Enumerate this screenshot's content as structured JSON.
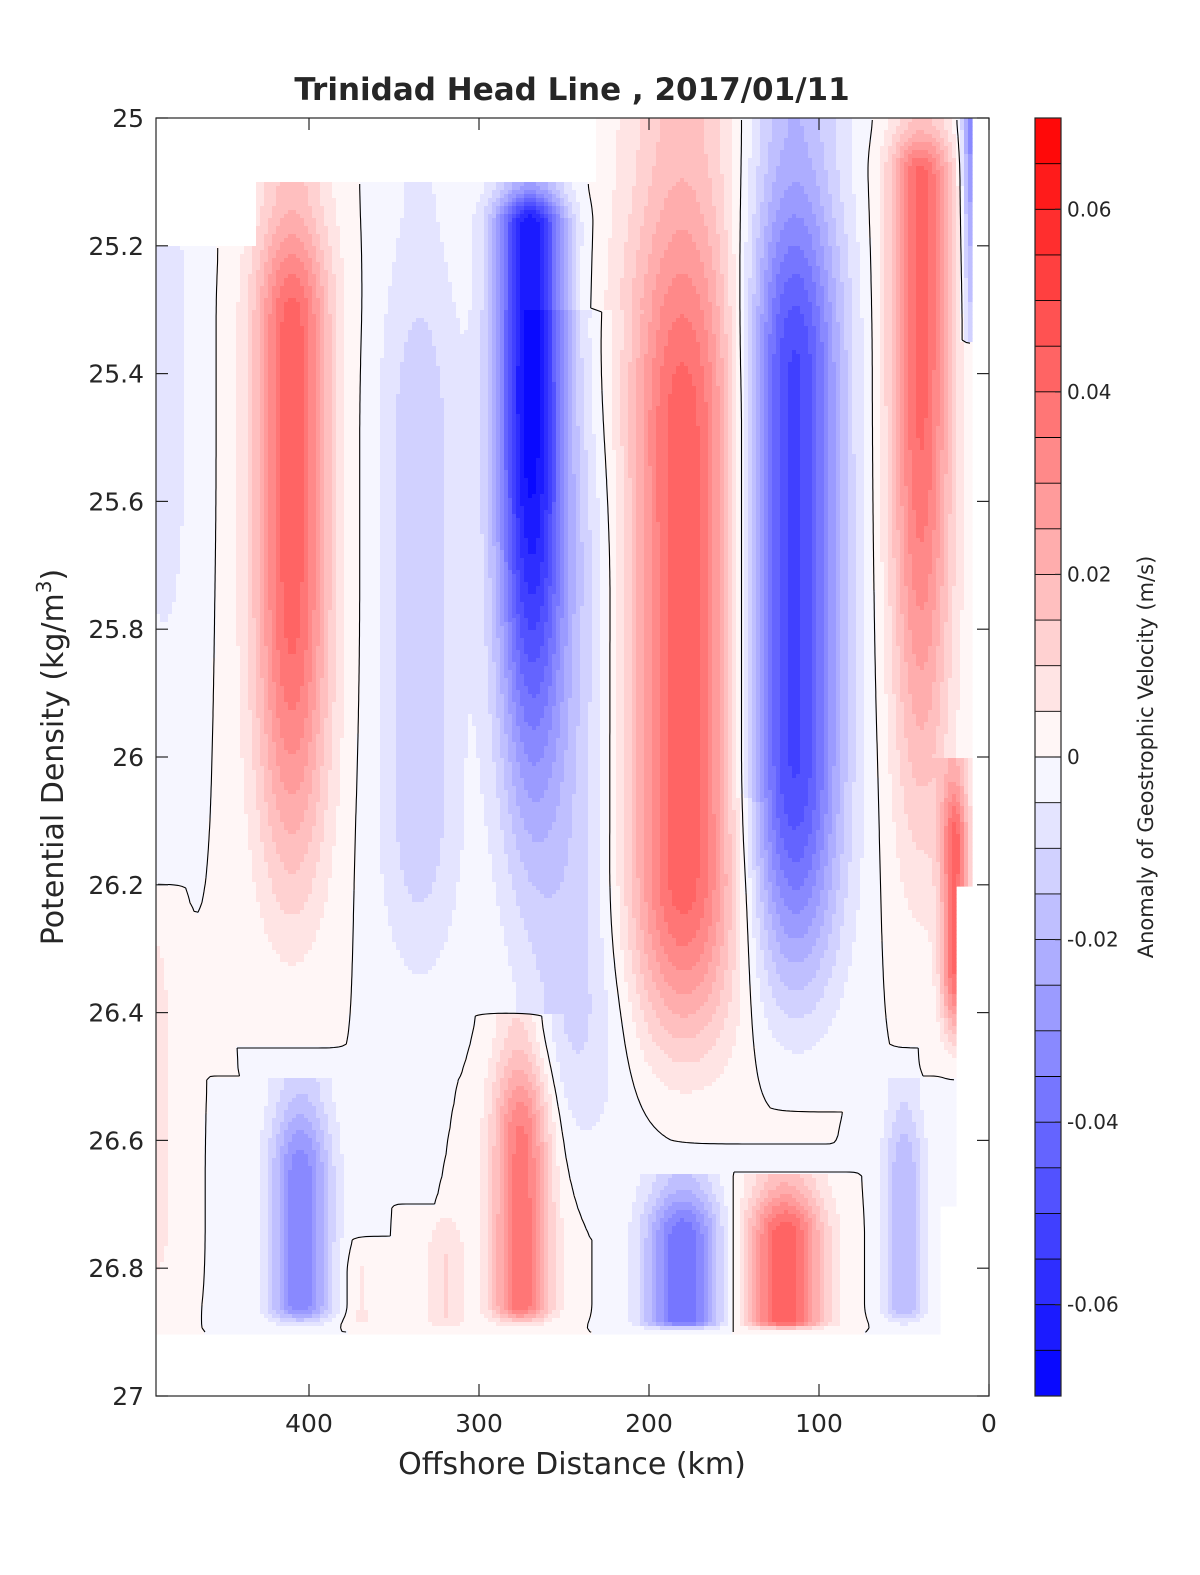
{
  "chart_data": {
    "type": "heatmap",
    "title": "Trinidad Head Line , 2017/01/11",
    "xlabel": "Offshore Distance (km)",
    "ylabel": "Potential Density (kg/m",
    "ylabel_sup": "3",
    "ylabel_end": ")",
    "xlim": [
      490,
      0
    ],
    "ylim": [
      25,
      27
    ],
    "x_reversed": true,
    "y_reversed": true,
    "x_ticks": [
      400,
      300,
      200,
      100,
      0
    ],
    "x_tick_labels": [
      "400",
      "300",
      "200",
      "100",
      "0"
    ],
    "y_ticks": [
      25,
      25.2,
      25.4,
      25.6,
      25.8,
      26,
      26.2,
      26.4,
      26.6,
      26.8,
      27
    ],
    "y_tick_labels": [
      "25",
      "25.2",
      "25.4",
      "25.6",
      "25.8",
      "26",
      "26.2",
      "26.4",
      "26.6",
      "26.8",
      "27"
    ],
    "colorbar": {
      "label": "Anomaly of Geostrophic Velocity (m/s)",
      "range": [
        -0.07,
        0.07
      ],
      "ticks": [
        0.06,
        0.04,
        0.02,
        0,
        -0.02,
        -0.04,
        -0.06
      ],
      "tick_labels": [
        "0.06",
        "0.04",
        "0.02",
        "0",
        "-0.02",
        "-0.04",
        "-0.06"
      ],
      "levels": 28,
      "colormap": "blue-white-red",
      "colors": {
        "negative": "#0000ff",
        "zero": "#ffffff",
        "positive": "#ff0000"
      }
    },
    "x_grid": [
      490,
      480,
      470,
      460,
      450,
      440,
      430,
      420,
      410,
      400,
      390,
      380,
      370,
      360,
      350,
      340,
      330,
      320,
      310,
      300,
      290,
      280,
      270,
      260,
      250,
      240,
      230,
      220,
      210,
      200,
      190,
      180,
      170,
      160,
      150,
      140,
      130,
      120,
      110,
      100,
      90,
      80,
      70,
      60,
      50,
      40,
      30,
      20,
      10
    ],
    "y_grid": [
      25.0,
      25.1,
      25.2,
      25.3,
      25.4,
      25.5,
      25.6,
      25.7,
      25.8,
      25.9,
      26.0,
      26.1,
      26.2,
      26.3,
      26.4,
      26.5,
      26.6,
      26.7,
      26.8,
      26.9
    ],
    "valid_x_range_by_row": [
      [
        10,
        230
      ],
      [
        10,
        430
      ],
      [
        10,
        490
      ],
      [
        10,
        490
      ],
      [
        10,
        490
      ],
      [
        10,
        490
      ],
      [
        10,
        490
      ],
      [
        10,
        490
      ],
      [
        10,
        490
      ],
      [
        10,
        490
      ],
      [
        10,
        490
      ],
      [
        10,
        490
      ],
      [
        20,
        490
      ],
      [
        20,
        490
      ],
      [
        20,
        490
      ],
      [
        20,
        490
      ],
      [
        20,
        490
      ],
      [
        30,
        490
      ],
      [
        30,
        490
      ],
      [
        30,
        490
      ]
    ],
    "cores": [
      {
        "x": 410,
        "y_top": 25.1,
        "y_bottom": 26.45,
        "y_peak": 25.6,
        "amp": 0.043,
        "width_km": 22
      },
      {
        "x": 270,
        "y_top": 25.1,
        "y_bottom": 26.35,
        "y_peak": 25.25,
        "amp": -0.065,
        "width_km": 20
      },
      {
        "x": 180,
        "y_top": 25.0,
        "y_bottom": 26.6,
        "y_peak": 26.1,
        "amp": 0.044,
        "width_km": 34
      },
      {
        "x": 115,
        "y_top": 25.0,
        "y_bottom": 26.55,
        "y_peak": 25.9,
        "amp": -0.052,
        "width_km": 28
      },
      {
        "x": 40,
        "y_top": 25.0,
        "y_bottom": 26.45,
        "y_peak": 25.2,
        "amp": 0.042,
        "width_km": 18
      },
      {
        "x": 20,
        "y_top": 26.0,
        "y_bottom": 26.5,
        "y_peak": 26.3,
        "amp": 0.04,
        "width_km": 8
      },
      {
        "x": 10,
        "y_top": 25.0,
        "y_bottom": 25.35,
        "y_peak": 25.0,
        "amp": -0.035,
        "width_km": 6
      },
      {
        "x": 335,
        "y_top": 25.1,
        "y_bottom": 26.5,
        "y_peak": 26.0,
        "amp": -0.014,
        "width_km": 24
      },
      {
        "x": 245,
        "y_top": 25.3,
        "y_bottom": 26.75,
        "y_peak": 26.3,
        "amp": -0.013,
        "width_km": 35
      },
      {
        "x": 485,
        "y_top": 25.1,
        "y_bottom": 26.25,
        "y_peak": 25.4,
        "amp": -0.007,
        "width_km": 20
      },
      {
        "x": 405,
        "y_top": 26.5,
        "y_bottom": 26.9,
        "y_peak": 26.85,
        "amp": -0.034,
        "width_km": 18
      },
      {
        "x": 275,
        "y_top": 26.4,
        "y_bottom": 26.9,
        "y_peak": 26.85,
        "amp": 0.039,
        "width_km": 17
      },
      {
        "x": 180,
        "y_top": 26.65,
        "y_bottom": 26.9,
        "y_peak": 26.88,
        "amp": -0.04,
        "width_km": 22
      },
      {
        "x": 120,
        "y_top": 26.65,
        "y_bottom": 26.9,
        "y_peak": 26.88,
        "amp": 0.045,
        "width_km": 22
      },
      {
        "x": 50,
        "y_top": 26.5,
        "y_bottom": 26.9,
        "y_peak": 26.85,
        "amp": -0.02,
        "width_km": 12
      },
      {
        "x": 320,
        "y_top": 26.7,
        "y_bottom": 26.9,
        "y_peak": 26.88,
        "amp": 0.01,
        "width_km": 12
      },
      {
        "x": 370,
        "y_top": 26.75,
        "y_bottom": 26.9,
        "y_peak": 26.88,
        "amp": 0.006,
        "width_km": 10
      },
      {
        "x": 490,
        "y_top": 26.2,
        "y_bottom": 26.9,
        "y_peak": 26.7,
        "amp": 0.008,
        "width_km": 10
      }
    ]
  }
}
